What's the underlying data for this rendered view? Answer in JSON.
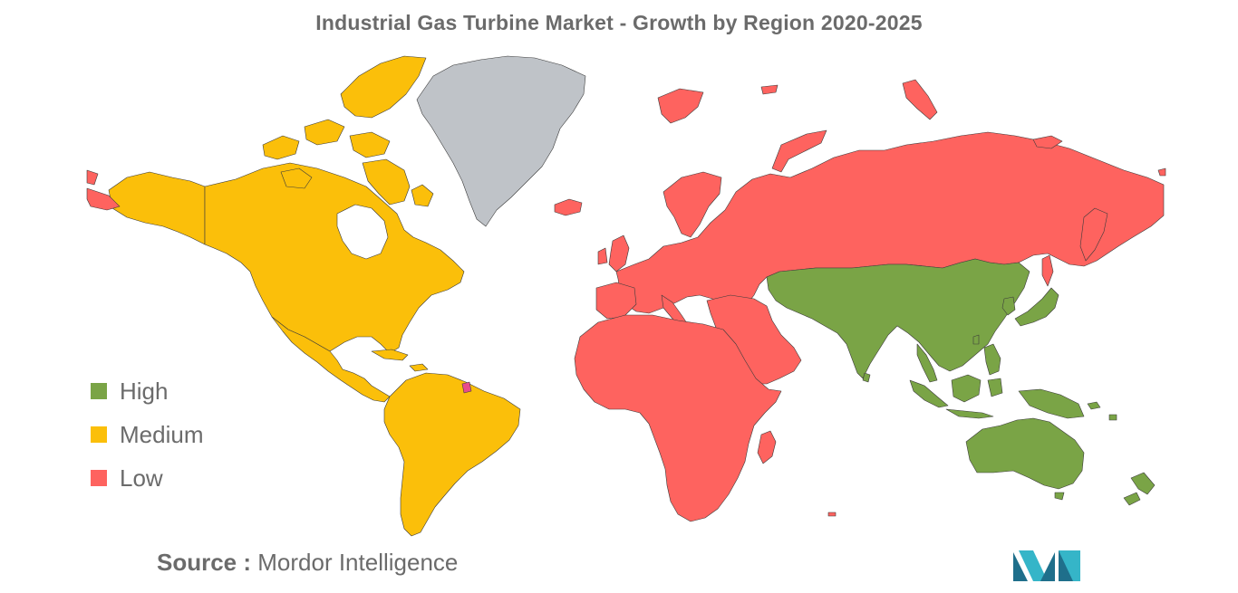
{
  "title": "Industrial Gas Turbine Market - Growth by Region 2020-2025",
  "legend": {
    "items": [
      {
        "label": "High",
        "color": "#7aa446"
      },
      {
        "label": "Medium",
        "color": "#fbbf0a"
      },
      {
        "label": "Low",
        "color": "#fe635f"
      }
    ]
  },
  "colors": {
    "high": "#7aa446",
    "medium": "#fbbf0a",
    "low": "#fe635f",
    "no_data": "#bfc3c8",
    "border": "#3b3b3b"
  },
  "regions": [
    {
      "name": "North America",
      "level": "Medium"
    },
    {
      "name": "South America",
      "level": "Medium"
    },
    {
      "name": "Europe",
      "level": "Low"
    },
    {
      "name": "Russia",
      "level": "Low"
    },
    {
      "name": "Africa",
      "level": "Low"
    },
    {
      "name": "Middle East",
      "level": "Low"
    },
    {
      "name": "Asia-Pacific",
      "level": "High"
    },
    {
      "name": "Greenland",
      "level": "No data"
    }
  ],
  "source": {
    "label": "Source :",
    "text": " Mordor Intelligence"
  },
  "logo": {
    "icon": "mordor-intelligence-logo",
    "color_dark": "#1f6f8b",
    "color_light": "#35b5c8"
  }
}
